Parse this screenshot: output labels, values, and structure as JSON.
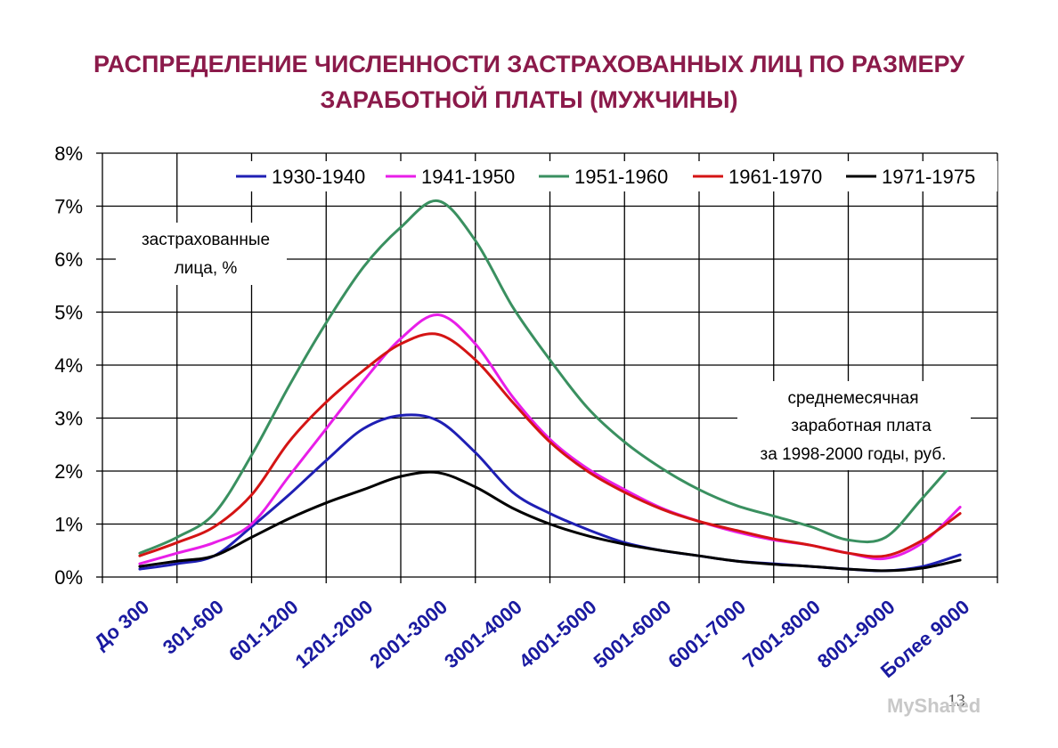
{
  "title_lines": [
    "РАСПРЕДЕЛЕНИЕ ЧИСЛЕННОСТИ ЗАСТРАХОВАННЫХ ЛИЦ ПО РАЗМЕРУ",
    "ЗАРАБОТНОЙ ПЛАТЫ (МУЖЧИНЫ)"
  ],
  "page_number": "13",
  "watermark": "MyShared",
  "colors": {
    "title": "#8b1a4a",
    "tick_x": "#1a1aa0",
    "grid": "#000000"
  },
  "chart_data": {
    "type": "line",
    "title": "РАСПРЕДЕЛЕНИЕ ЧИСЛЕННОСТИ ЗАСТРАХОВАННЫХ ЛИЦ ПО РАЗМЕРУ ЗАРАБОТНОЙ ПЛАТЫ (МУЖЧИНЫ)",
    "ylabel_lines": [
      "застрахованные",
      "лица, %"
    ],
    "xlabel_lines": [
      "среднемесячная",
      "заработная плата",
      "за 1998-2000 годы, руб."
    ],
    "ylim": [
      0,
      8
    ],
    "yticks": [
      "0%",
      "1%",
      "2%",
      "3%",
      "4%",
      "5%",
      "6%",
      "7%",
      "8%"
    ],
    "grid": true,
    "legend_position": "top",
    "categories": [
      "До 300",
      "301-600",
      "601-1200",
      "1201-2000",
      "2001-3000",
      "3001-4000",
      "4001-5000",
      "5001-6000",
      "6001-7000",
      "7001-8000",
      "8001-9000",
      "Более 9000"
    ],
    "series": [
      {
        "name": "1930-1940",
        "color": "#1f1fb4",
        "x": [
          0,
          0.5,
          1,
          1.5,
          2,
          2.5,
          3,
          3.5,
          4,
          4.5,
          5,
          5.5,
          6,
          6.5,
          7,
          7.5,
          8,
          8.5,
          9,
          9.5,
          10,
          10.5,
          11
        ],
        "values": [
          0.15,
          0.25,
          0.4,
          0.95,
          1.55,
          2.2,
          2.8,
          3.05,
          2.95,
          2.35,
          1.6,
          1.2,
          0.9,
          0.65,
          0.5,
          0.4,
          0.3,
          0.25,
          0.2,
          0.15,
          0.12,
          0.2,
          0.42
        ]
      },
      {
        "name": "1941-1950",
        "color": "#e81ee8",
        "x": [
          0,
          0.5,
          1,
          1.5,
          2,
          2.5,
          3,
          3.5,
          4,
          4.5,
          5,
          5.5,
          6,
          6.5,
          7,
          7.5,
          8,
          8.5,
          9,
          9.5,
          10,
          10.5,
          11
        ],
        "values": [
          0.25,
          0.45,
          0.65,
          1.0,
          1.9,
          2.8,
          3.7,
          4.5,
          4.95,
          4.4,
          3.4,
          2.6,
          2.05,
          1.65,
          1.3,
          1.05,
          0.85,
          0.7,
          0.6,
          0.45,
          0.35,
          0.65,
          1.32
        ]
      },
      {
        "name": "1951-1960",
        "color": "#3a9060",
        "x": [
          0,
          0.5,
          1,
          1.5,
          2,
          2.5,
          3,
          3.5,
          4,
          4.5,
          5,
          5.5,
          6,
          6.5,
          7,
          7.5,
          8,
          8.5,
          9,
          9.5,
          10,
          10.5,
          11
        ],
        "values": [
          0.45,
          0.75,
          1.2,
          2.3,
          3.6,
          4.8,
          5.85,
          6.6,
          7.1,
          6.35,
          5.1,
          4.1,
          3.2,
          2.55,
          2.05,
          1.65,
          1.35,
          1.15,
          0.95,
          0.7,
          0.75,
          1.5,
          2.3
        ]
      },
      {
        "name": "1961-1970",
        "color": "#d41414",
        "x": [
          0,
          0.5,
          1,
          1.5,
          2,
          2.5,
          3,
          3.5,
          4,
          4.5,
          5,
          5.5,
          6,
          6.5,
          7,
          7.5,
          8,
          8.5,
          9,
          9.5,
          10,
          10.5,
          11
        ],
        "values": [
          0.4,
          0.65,
          0.95,
          1.55,
          2.55,
          3.3,
          3.9,
          4.4,
          4.58,
          4.1,
          3.3,
          2.55,
          2.0,
          1.6,
          1.28,
          1.05,
          0.88,
          0.72,
          0.6,
          0.45,
          0.4,
          0.7,
          1.2
        ]
      },
      {
        "name": "1971-1975",
        "color": "#000000",
        "x": [
          0,
          0.5,
          1,
          1.5,
          2,
          2.5,
          3,
          3.5,
          4,
          4.5,
          5,
          5.5,
          6,
          6.5,
          7,
          7.5,
          8,
          8.5,
          9,
          9.5,
          10,
          10.5,
          11
        ],
        "values": [
          0.2,
          0.3,
          0.4,
          0.75,
          1.1,
          1.4,
          1.65,
          1.9,
          1.97,
          1.7,
          1.3,
          1.0,
          0.78,
          0.62,
          0.5,
          0.4,
          0.3,
          0.24,
          0.2,
          0.15,
          0.12,
          0.17,
          0.32
        ]
      }
    ]
  }
}
